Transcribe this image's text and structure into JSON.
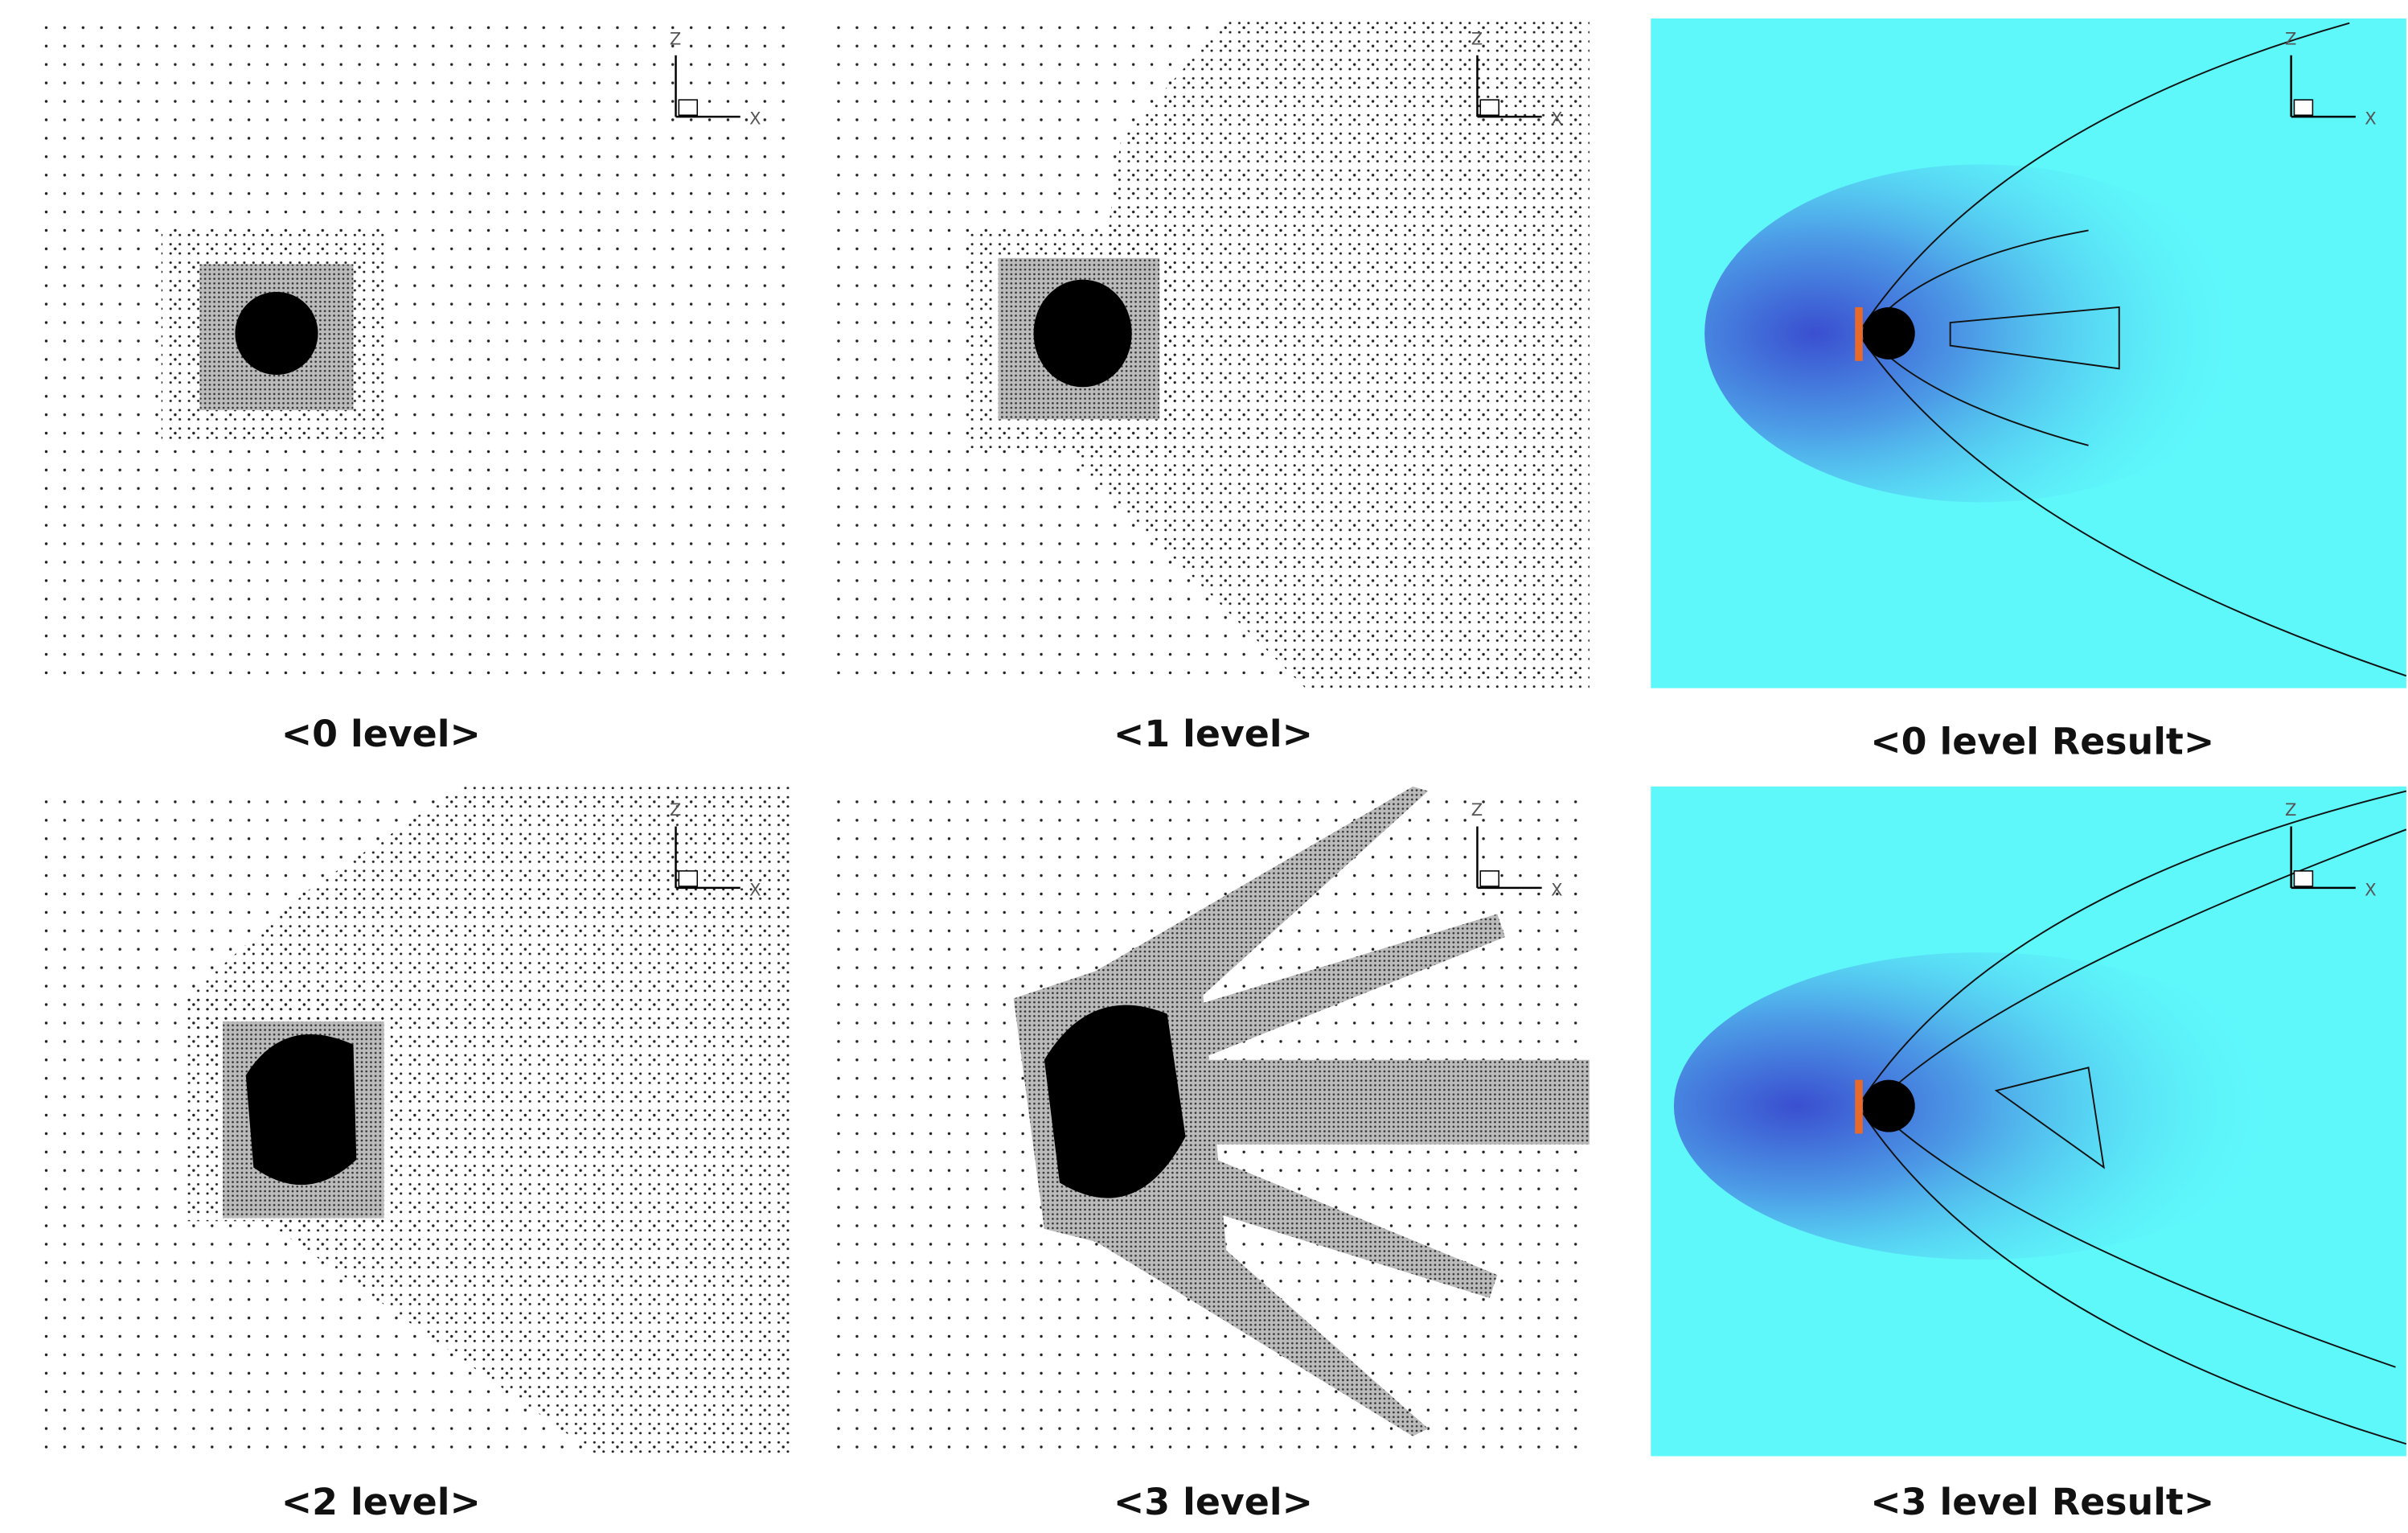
{
  "panels": [
    {
      "label": "<0 level>"
    },
    {
      "label": "<1 level>"
    },
    {
      "label": "<0 level Result>"
    },
    {
      "label": "<2 level>"
    },
    {
      "label": "<3 level>"
    },
    {
      "label": "<3 level Result>"
    }
  ],
  "axis_labels": {
    "z": "Z",
    "x": "X"
  }
}
